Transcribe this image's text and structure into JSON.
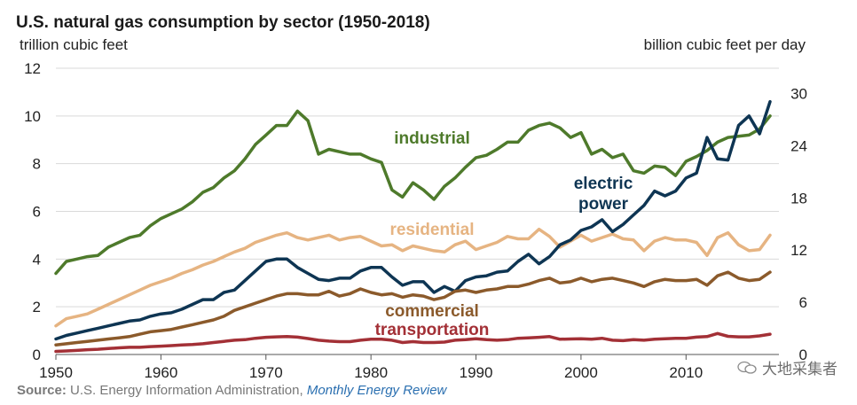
{
  "header": {
    "title": "U.S. natural gas consumption by sector (1950-2018)",
    "unit_left": "trillion cubic feet",
    "unit_right": "billion cubic feet per day"
  },
  "footer": {
    "source_label": "Source:",
    "source_agency": "U.S. Energy Information Administration,",
    "source_publication": "Monthly Energy Review",
    "watermark_text": "大地采集者"
  },
  "chart_data": {
    "type": "line",
    "title": "U.S. natural gas consumption by sector (1950-2018)",
    "xlabel": "",
    "ylabel": "trillion cubic feet",
    "y2label": "billion cubic feet per day",
    "xlim": [
      1950,
      2018
    ],
    "ylim": [
      0,
      12
    ],
    "y2lim": [
      0,
      32.9
    ],
    "x_ticks": [
      1950,
      1960,
      1970,
      1980,
      1990,
      2000,
      2010
    ],
    "y_ticks": [
      0,
      2,
      4,
      6,
      8,
      10,
      12
    ],
    "y2_ticks": [
      0,
      6,
      12,
      18,
      24,
      30
    ],
    "grid": "horizontal",
    "x": [
      1950,
      1951,
      1952,
      1953,
      1954,
      1955,
      1956,
      1957,
      1958,
      1959,
      1960,
      1961,
      1962,
      1963,
      1964,
      1965,
      1966,
      1967,
      1968,
      1969,
      1970,
      1971,
      1972,
      1973,
      1974,
      1975,
      1976,
      1977,
      1978,
      1979,
      1980,
      1981,
      1982,
      1983,
      1984,
      1985,
      1986,
      1987,
      1988,
      1989,
      1990,
      1991,
      1992,
      1993,
      1994,
      1995,
      1996,
      1997,
      1998,
      1999,
      2000,
      2001,
      2002,
      2003,
      2004,
      2005,
      2006,
      2007,
      2008,
      2009,
      2010,
      2011,
      2012,
      2013,
      2014,
      2015,
      2016,
      2017,
      2018
    ],
    "series": [
      {
        "name": "industrial",
        "color": "#4e7a2b",
        "values": [
          3.4,
          3.9,
          4.0,
          4.1,
          4.15,
          4.5,
          4.7,
          4.9,
          5.0,
          5.4,
          5.7,
          5.9,
          6.1,
          6.4,
          6.8,
          7.0,
          7.4,
          7.7,
          8.2,
          8.8,
          9.2,
          9.6,
          9.6,
          10.2,
          9.8,
          8.4,
          8.6,
          8.5,
          8.4,
          8.4,
          8.2,
          8.05,
          6.9,
          6.6,
          7.2,
          6.9,
          6.5,
          7.05,
          7.4,
          7.85,
          8.25,
          8.35,
          8.6,
          8.9,
          8.9,
          9.4,
          9.6,
          9.7,
          9.5,
          9.1,
          9.3,
          8.4,
          8.6,
          8.25,
          8.4,
          7.7,
          7.6,
          7.9,
          7.85,
          7.5,
          8.1,
          8.3,
          8.55,
          8.9,
          9.1,
          9.15,
          9.2,
          9.45,
          10.0
        ]
      },
      {
        "name": "residential",
        "color": "#e6b482",
        "values": [
          1.2,
          1.5,
          1.6,
          1.7,
          1.9,
          2.1,
          2.3,
          2.5,
          2.7,
          2.9,
          3.05,
          3.2,
          3.4,
          3.55,
          3.75,
          3.9,
          4.1,
          4.3,
          4.45,
          4.7,
          4.85,
          5.0,
          5.1,
          4.9,
          4.8,
          4.9,
          5.0,
          4.8,
          4.9,
          4.95,
          4.75,
          4.55,
          4.6,
          4.35,
          4.55,
          4.45,
          4.35,
          4.3,
          4.6,
          4.75,
          4.4,
          4.55,
          4.7,
          4.95,
          4.85,
          4.85,
          5.25,
          4.95,
          4.5,
          4.75,
          5.0,
          4.75,
          4.9,
          5.05,
          4.85,
          4.8,
          4.35,
          4.75,
          4.9,
          4.8,
          4.8,
          4.7,
          4.15,
          4.9,
          5.1,
          4.6,
          4.35,
          4.4,
          5.0
        ]
      },
      {
        "name": "electric power",
        "color": "#0e3553",
        "values": [
          0.65,
          0.8,
          0.9,
          1.0,
          1.1,
          1.2,
          1.3,
          1.4,
          1.45,
          1.6,
          1.7,
          1.75,
          1.9,
          2.1,
          2.3,
          2.3,
          2.6,
          2.7,
          3.1,
          3.5,
          3.9,
          4.0,
          4.0,
          3.65,
          3.4,
          3.15,
          3.1,
          3.2,
          3.2,
          3.5,
          3.65,
          3.65,
          3.25,
          2.9,
          3.05,
          3.05,
          2.6,
          2.85,
          2.65,
          3.1,
          3.25,
          3.3,
          3.45,
          3.5,
          3.9,
          4.2,
          3.8,
          4.1,
          4.6,
          4.8,
          5.2,
          5.35,
          5.65,
          5.15,
          5.45,
          5.85,
          6.25,
          6.85,
          6.65,
          6.85,
          7.4,
          7.6,
          9.1,
          8.2,
          8.15,
          9.6,
          10.0,
          9.25,
          10.6
        ]
      },
      {
        "name": "commercial",
        "color": "#8b5a2b",
        "values": [
          0.4,
          0.45,
          0.5,
          0.55,
          0.6,
          0.65,
          0.7,
          0.75,
          0.85,
          0.95,
          1.0,
          1.05,
          1.15,
          1.25,
          1.35,
          1.45,
          1.6,
          1.85,
          2.0,
          2.15,
          2.3,
          2.45,
          2.55,
          2.55,
          2.5,
          2.5,
          2.65,
          2.45,
          2.55,
          2.75,
          2.6,
          2.5,
          2.55,
          2.4,
          2.5,
          2.45,
          2.3,
          2.4,
          2.65,
          2.7,
          2.6,
          2.7,
          2.75,
          2.85,
          2.85,
          2.95,
          3.1,
          3.2,
          3.0,
          3.05,
          3.2,
          3.05,
          3.15,
          3.2,
          3.1,
          3.0,
          2.85,
          3.05,
          3.15,
          3.1,
          3.1,
          3.15,
          2.9,
          3.3,
          3.45,
          3.2,
          3.1,
          3.15,
          3.45
        ]
      },
      {
        "name": "transportation",
        "color": "#a33036",
        "values": [
          0.13,
          0.15,
          0.17,
          0.2,
          0.22,
          0.25,
          0.28,
          0.3,
          0.3,
          0.33,
          0.35,
          0.37,
          0.4,
          0.42,
          0.45,
          0.5,
          0.55,
          0.6,
          0.62,
          0.68,
          0.72,
          0.74,
          0.75,
          0.73,
          0.67,
          0.6,
          0.56,
          0.54,
          0.54,
          0.6,
          0.64,
          0.64,
          0.6,
          0.5,
          0.54,
          0.5,
          0.5,
          0.52,
          0.6,
          0.62,
          0.66,
          0.62,
          0.6,
          0.62,
          0.68,
          0.7,
          0.72,
          0.75,
          0.64,
          0.65,
          0.66,
          0.64,
          0.68,
          0.6,
          0.58,
          0.62,
          0.6,
          0.64,
          0.66,
          0.68,
          0.68,
          0.73,
          0.75,
          0.88,
          0.76,
          0.74,
          0.74,
          0.78,
          0.85
        ]
      }
    ],
    "series_labels": [
      {
        "name": "industrial",
        "text": "industrial",
        "color": "#4e7a2b"
      },
      {
        "name": "residential",
        "text": "residential",
        "color": "#e6b482"
      },
      {
        "name": "electric power",
        "text": "electric power",
        "color": "#0e3553"
      },
      {
        "name": "commercial",
        "text": "commercial",
        "color": "#8b5a2b"
      },
      {
        "name": "transportation",
        "text": "transportation",
        "color": "#a33036"
      }
    ]
  }
}
